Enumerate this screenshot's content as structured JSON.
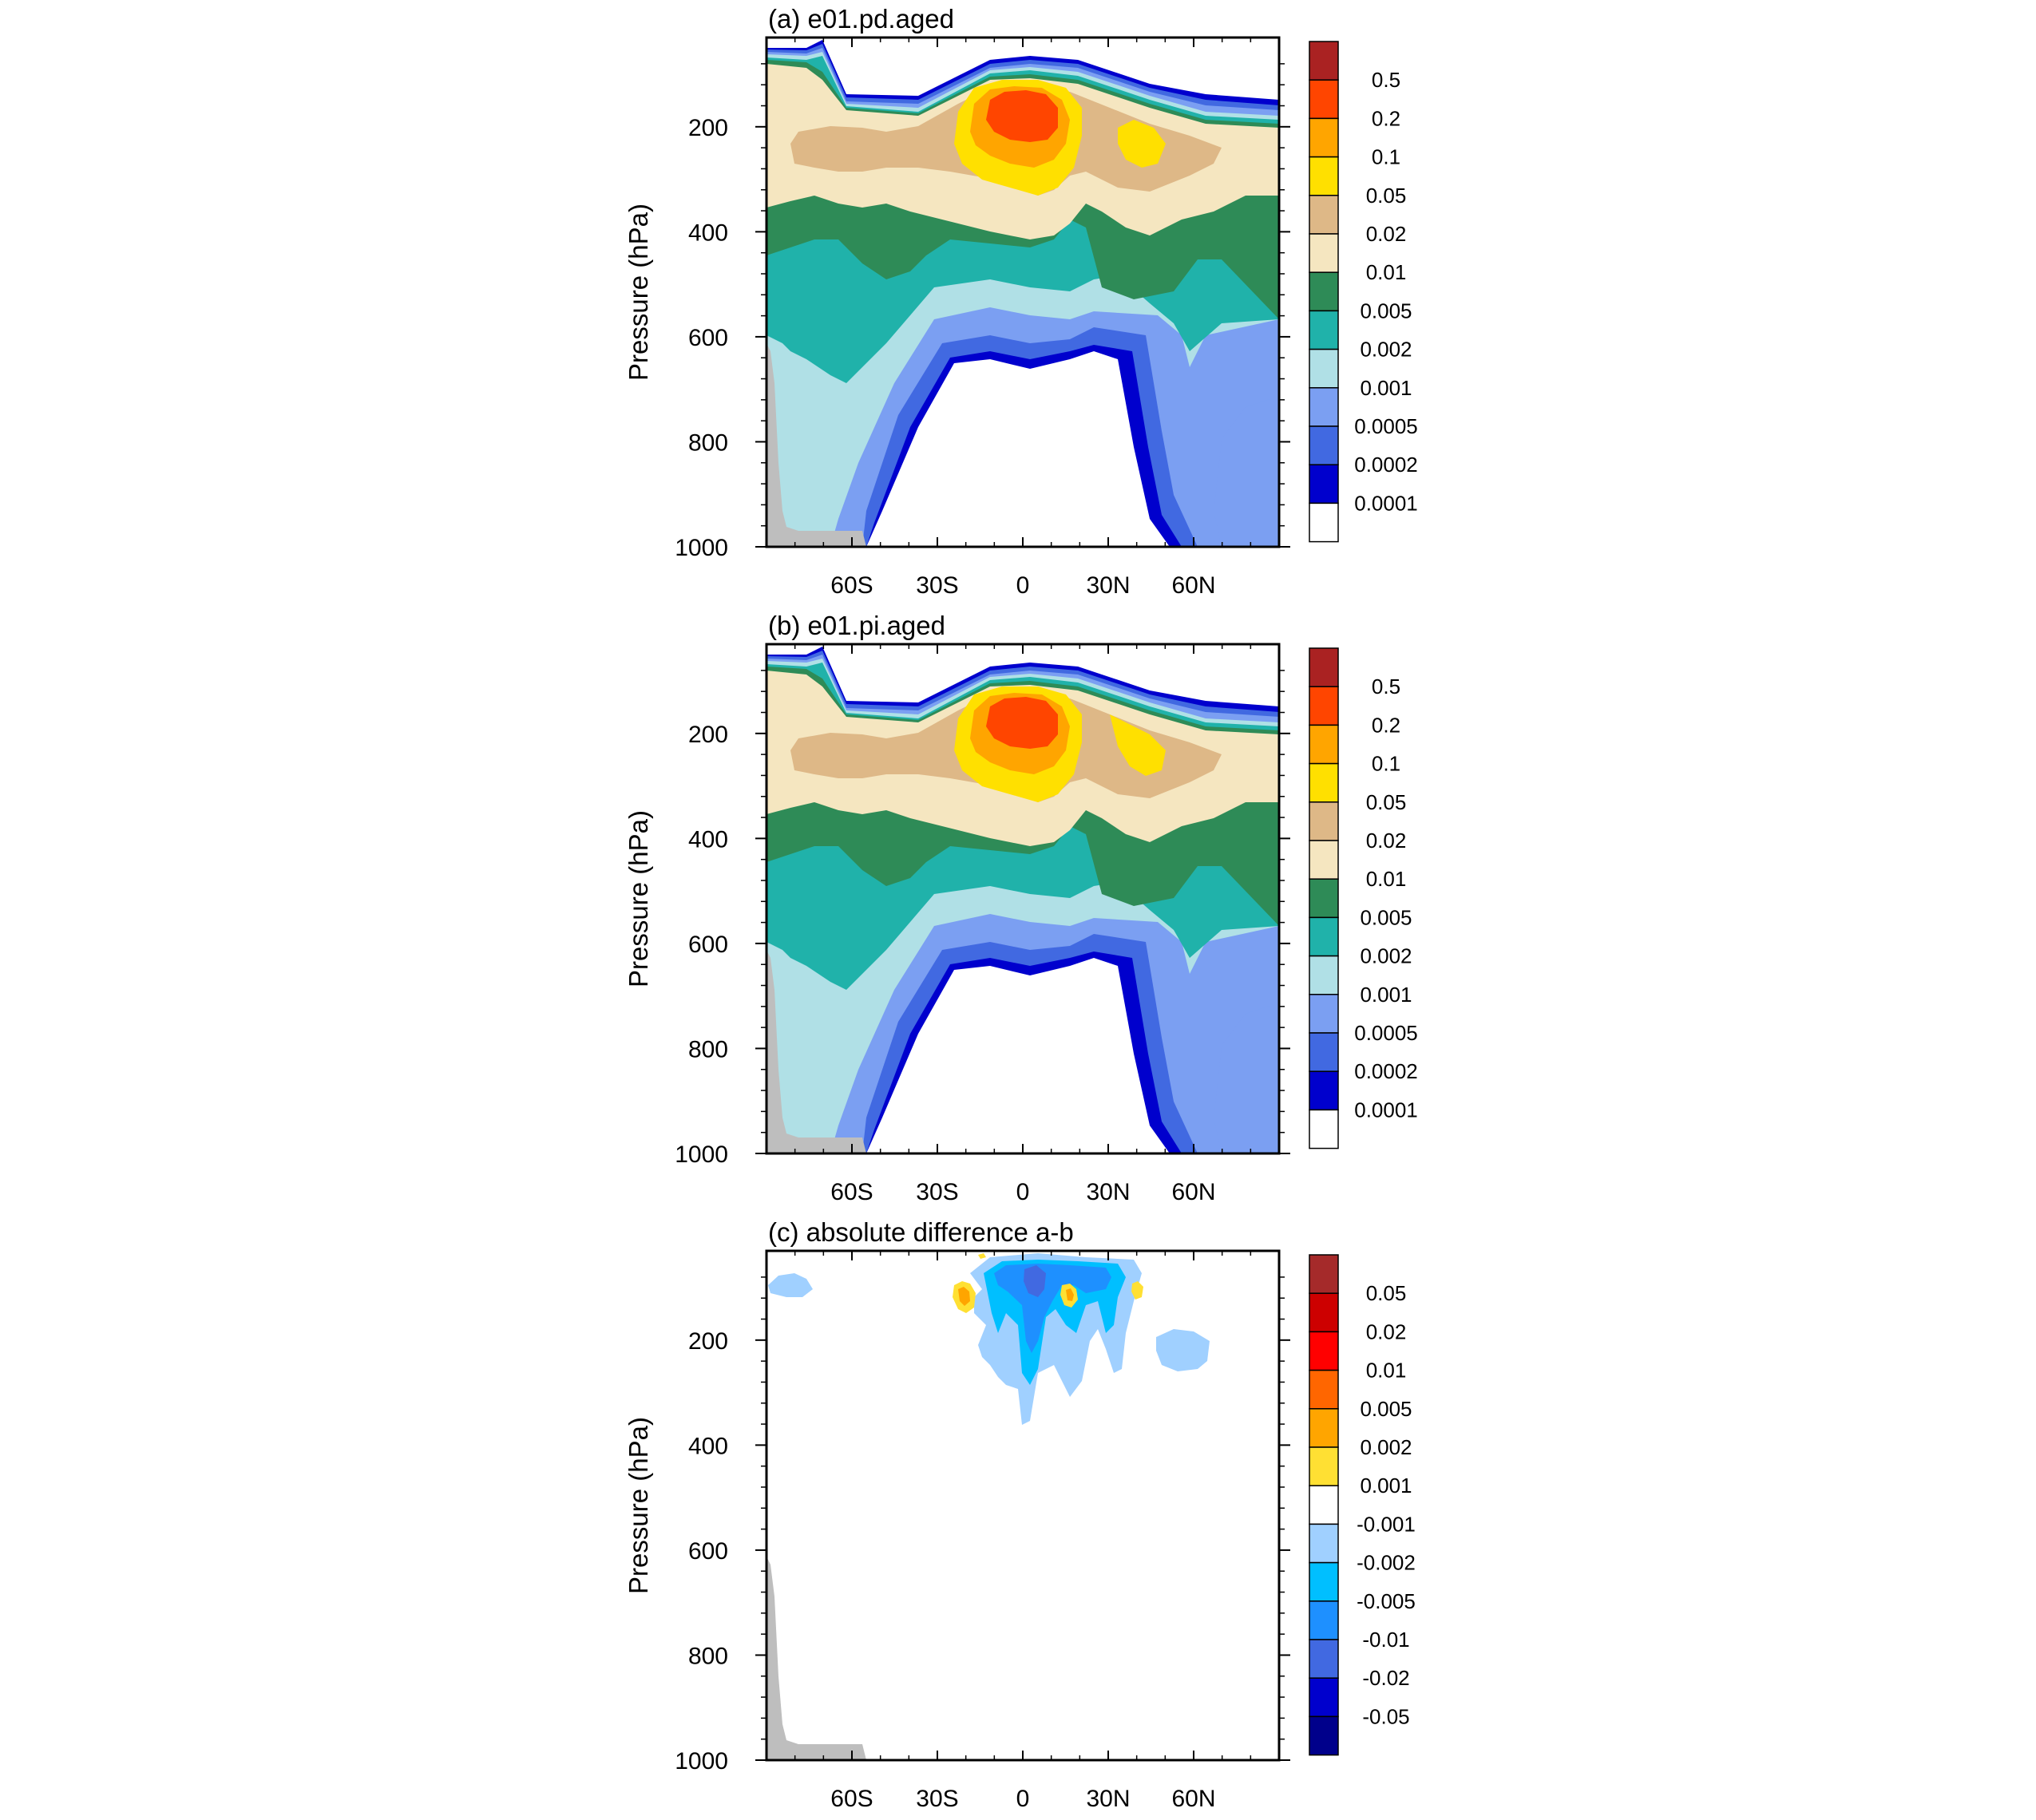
{
  "chart_data": [
    {
      "type": "heatmap",
      "title": "(a) e01.pd.aged",
      "ylabel": "Pressure (hPa)",
      "xlabel": "",
      "x_ticks": [
        "60S",
        "30S",
        "0",
        "30N",
        "60N"
      ],
      "x_tick_values": [
        -60,
        -30,
        0,
        30,
        60
      ],
      "y_ticks": [
        "200",
        "400",
        "600",
        "800",
        "1000"
      ],
      "y_tick_values": [
        200,
        400,
        600,
        800,
        1000
      ],
      "xlim": [
        -90,
        90
      ],
      "ylim": [
        1000,
        30
      ],
      "y_reversed": true,
      "colorbar_labels": [
        "0.5",
        "0.2",
        "0.1",
        "0.05",
        "0.02",
        "0.01",
        "0.005",
        "0.002",
        "0.001",
        "0.0005",
        "0.0002",
        "0.0001"
      ],
      "colorbar_colors": [
        "#aa2222",
        "#ff4500",
        "#ffa500",
        "#ffe000",
        "#deb887",
        "#f5e6c0",
        "#2e8b57",
        "#20b2aa",
        "#b0e0e6",
        "#7b9ff2",
        "#4169e1",
        "#0000cd",
        "#ffffff"
      ],
      "missing_color": "#bebebe",
      "grid": false,
      "legend": "right colorbar"
    },
    {
      "type": "heatmap",
      "title": "(b) e01.pi.aged",
      "ylabel": "Pressure (hPa)",
      "xlabel": "",
      "x_ticks": [
        "60S",
        "30S",
        "0",
        "30N",
        "60N"
      ],
      "x_tick_values": [
        -60,
        -30,
        0,
        30,
        60
      ],
      "y_ticks": [
        "200",
        "400",
        "600",
        "800",
        "1000"
      ],
      "y_tick_values": [
        200,
        400,
        600,
        800,
        1000
      ],
      "xlim": [
        -90,
        90
      ],
      "ylim": [
        1000,
        30
      ],
      "y_reversed": true,
      "colorbar_labels": [
        "0.5",
        "0.2",
        "0.1",
        "0.05",
        "0.02",
        "0.01",
        "0.005",
        "0.002",
        "0.001",
        "0.0005",
        "0.0002",
        "0.0001"
      ],
      "colorbar_colors": [
        "#aa2222",
        "#ff4500",
        "#ffa500",
        "#ffe000",
        "#deb887",
        "#f5e6c0",
        "#2e8b57",
        "#20b2aa",
        "#b0e0e6",
        "#7b9ff2",
        "#4169e1",
        "#0000cd",
        "#ffffff"
      ],
      "missing_color": "#bebebe",
      "grid": false,
      "legend": "right colorbar"
    },
    {
      "type": "heatmap",
      "title": "(c) absolute difference a-b",
      "ylabel": "Pressure (hPa)",
      "xlabel": "",
      "x_ticks": [
        "60S",
        "30S",
        "0",
        "30N",
        "60N"
      ],
      "x_tick_values": [
        -60,
        -30,
        0,
        30,
        60
      ],
      "y_ticks": [
        "200",
        "400",
        "600",
        "800",
        "1000"
      ],
      "y_tick_values": [
        200,
        400,
        600,
        800,
        1000
      ],
      "xlim": [
        -90,
        90
      ],
      "ylim": [
        1000,
        30
      ],
      "y_reversed": true,
      "colorbar_labels": [
        "0.05",
        "0.02",
        "0.01",
        "0.005",
        "0.002",
        "0.001",
        "-0.001",
        "-0.002",
        "-0.005",
        "-0.01",
        "-0.02",
        "-0.05"
      ],
      "colorbar_colors": [
        "#a52a2a",
        "#cd0000",
        "#ff0000",
        "#ff6600",
        "#ffa500",
        "#ffe033",
        "#ffffff",
        "#a0d0ff",
        "#00bfff",
        "#1e90ff",
        "#4169e1",
        "#0000cd",
        "#00008b"
      ],
      "missing_color": "#bebebe",
      "grid": false,
      "legend": "right colorbar"
    }
  ]
}
